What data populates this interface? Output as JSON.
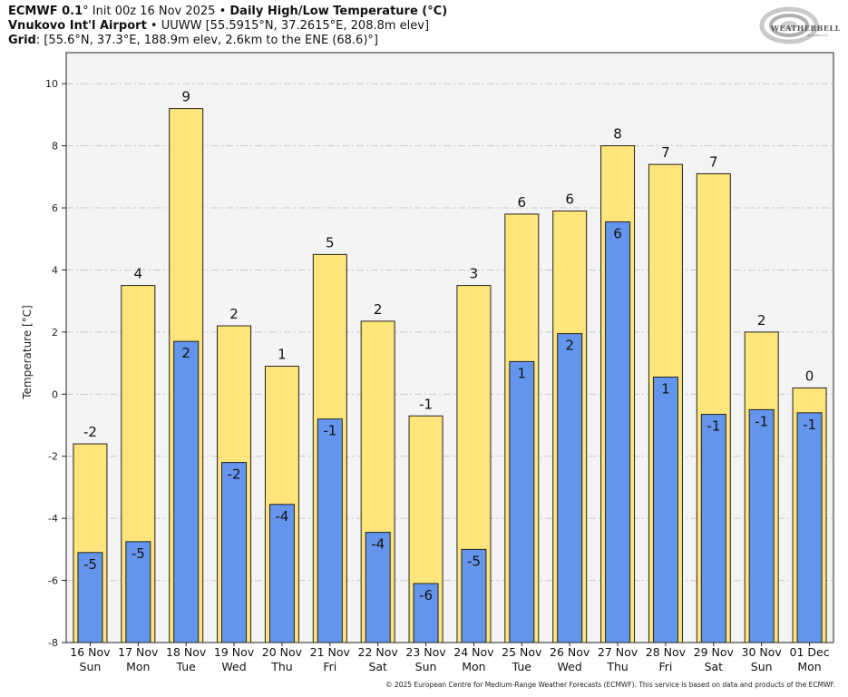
{
  "header": {
    "line1": {
      "model": "ECMWF 0.1",
      "rest": "° Init 00z 16 Nov 2025 • ",
      "title": "Daily High/Low Temperature (°C)"
    },
    "line2": {
      "station": "Vnukovo Int'l Airport",
      "rest": " • UUWW [55.5915°N, 37.2615°E, 208.8m elev]"
    },
    "line3": {
      "label": "Grid",
      "rest": ": [55.6°N, 37.3°E, 188.9m elev, 2.6km to the ENE (68.6)°]"
    }
  },
  "logo": {
    "name": "WEATHERBELL",
    "sub": "Analytics LLC"
  },
  "copyright": "© 2025 European Centre for Medium-Range Weather Forecasts (ECMWF). This service is based on data and products of the ECMWF.",
  "colors": {
    "high": "#ffe57a",
    "low": "#6495ed",
    "plot_bg": "#f4f4f4",
    "grid": "#c8c8c8",
    "outline": "#222222"
  },
  "chart_data": {
    "type": "bar",
    "title": "Daily High/Low Temperature (°C)",
    "xlabel": "",
    "ylabel": "Temperature [°C]",
    "ylim": [
      -8,
      11
    ],
    "yticks": [
      -8,
      -6,
      -4,
      -2,
      0,
      2,
      4,
      6,
      8,
      10
    ],
    "grid": true,
    "legend": "none",
    "categories": [
      "16 Nov",
      "17 Nov",
      "18 Nov",
      "19 Nov",
      "20 Nov",
      "21 Nov",
      "22 Nov",
      "23 Nov",
      "24 Nov",
      "25 Nov",
      "26 Nov",
      "27 Nov",
      "28 Nov",
      "29 Nov",
      "30 Nov",
      "01 Dec"
    ],
    "weekdays": [
      "Sun",
      "Mon",
      "Tue",
      "Wed",
      "Thu",
      "Fri",
      "Sat",
      "Sun",
      "Mon",
      "Tue",
      "Wed",
      "Thu",
      "Fri",
      "Sat",
      "Sun",
      "Mon"
    ],
    "series": [
      {
        "name": "High",
        "values": [
          -1.6,
          3.5,
          9.2,
          2.2,
          0.9,
          4.5,
          2.35,
          -0.7,
          3.5,
          5.8,
          5.9,
          8.0,
          7.4,
          7.1,
          2.0,
          0.2
        ],
        "labels": [
          "-2",
          "4",
          "9",
          "2",
          "1",
          "5",
          "2",
          "-1",
          "3",
          "6",
          "6",
          "8",
          "7",
          "7",
          "2",
          "0"
        ]
      },
      {
        "name": "Low",
        "values": [
          -5.1,
          -4.75,
          1.7,
          -2.2,
          -3.55,
          -0.8,
          -4.45,
          -6.1,
          -5.0,
          1.05,
          1.95,
          5.55,
          0.55,
          -0.65,
          -0.5,
          -0.6
        ],
        "labels": [
          "-5",
          "-5",
          "2",
          "-2",
          "-4",
          "-1",
          "-4",
          "-6",
          "-5",
          "1",
          "2",
          "6",
          "1",
          "-1",
          "-1",
          "-1"
        ]
      }
    ]
  }
}
